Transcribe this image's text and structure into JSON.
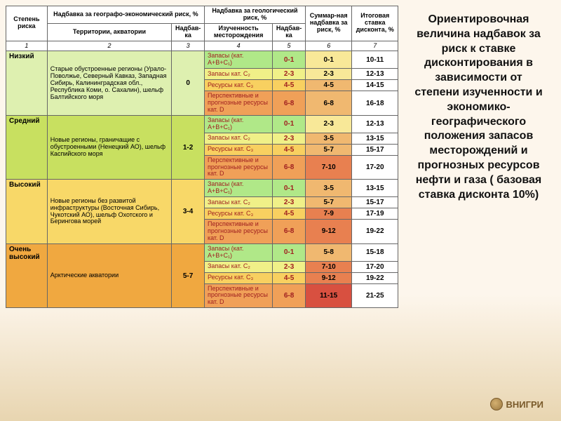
{
  "title_text": "Ориентировочная величина надбавок за риск к ставке дисконтирования в зависимости от степени изученности и экономико-географического положения запасов месторождений и прогнозных ресурсов нефти и газа ( базовая ставка дисконта 10%)",
  "footer": "ВНИГРИ",
  "headers": {
    "col1": "Степень риска",
    "geo_eco": "Надбавка за географо-экономический риск, %",
    "geol": "Надбавка за геологический риск, %",
    "sum": "Суммар-ная надбавка за риск, %",
    "total": "Итоговая ставка дисконта, %",
    "terr": "Территории, акватории",
    "nadb": "Надбав-ка",
    "study": "Изученность месторождения",
    "nadb2": "Надбав-ка"
  },
  "colnums": [
    "1",
    "2",
    "3",
    "4",
    "5",
    "6",
    "7"
  ],
  "colors": {
    "low_risk": "#def0b0",
    "mid_risk": "#c8e060",
    "high_risk": "#f8d868",
    "vhigh_risk": "#f0a840",
    "cat_abc": "#b0e888",
    "cat_c2": "#f0f088",
    "cat_c3": "#f8d060",
    "cat_d": "#f0a058",
    "sum_low": "#f8e898",
    "sum_mid": "#f0b870",
    "sum_high": "#e88050",
    "sum_vhigh": "#d85040"
  },
  "risk_levels": [
    {
      "name": "Низкий",
      "terr": "Старые обустроенные регионы (Урало-Поволжье, Северный Кавказ, Западная Сибирь, Калининградская обл., Республика Коми, о. Сахалин), шельф Балтийского моря",
      "nadb": "0",
      "bg": "low_risk",
      "rows": [
        {
          "study": "Запасы (кат. A+B+C₁)",
          "cat": "cat_abc",
          "n": "0-1",
          "s": "0-1",
          "sbg": "sum_low",
          "t": "10-11"
        },
        {
          "study": "Запасы кат. C₂",
          "cat": "cat_c2",
          "n": "2-3",
          "s": "2-3",
          "sbg": "sum_low",
          "t": "12-13"
        },
        {
          "study": "Ресурсы кат. C₃",
          "cat": "cat_c3",
          "n": "4-5",
          "s": "4-5",
          "sbg": "sum_mid",
          "t": "14-15"
        },
        {
          "study": "Перспективные и прогнозные ресурсы кат. D",
          "cat": "cat_d",
          "n": "6-8",
          "s": "6-8",
          "sbg": "sum_mid",
          "t": "16-18"
        }
      ]
    },
    {
      "name": "Средний",
      "terr": "Новые регионы, граничащие с обустроенными (Ненецкий АО), шельф Каспийского моря",
      "nadb": "1-2",
      "bg": "mid_risk",
      "rows": [
        {
          "study": "Запасы (кат. A+B+C₁)",
          "cat": "cat_abc",
          "n": "0-1",
          "s": "2-3",
          "sbg": "sum_low",
          "t": "12-13"
        },
        {
          "study": "Запасы кат. C₂",
          "cat": "cat_c2",
          "n": "2-3",
          "s": "3-5",
          "sbg": "sum_mid",
          "t": "13-15"
        },
        {
          "study": "Ресурсы кат. C₃",
          "cat": "cat_c3",
          "n": "4-5",
          "s": "5-7",
          "sbg": "sum_mid",
          "t": "15-17"
        },
        {
          "study": "Перспективные и прогнозные ресурсы кат. D",
          "cat": "cat_d",
          "n": "6-8",
          "s": "7-10",
          "sbg": "sum_high",
          "t": "17-20"
        }
      ]
    },
    {
      "name": "Высокий",
      "terr": "Новые регионы без развитой инфраструктуры (Восточная Сибирь, Чукотский АО), шельф Охотского и Берингова морей",
      "nadb": "3-4",
      "bg": "high_risk",
      "rows": [
        {
          "study": "Запасы (кат. A+B+C₁)",
          "cat": "cat_abc",
          "n": "0-1",
          "s": "3-5",
          "sbg": "sum_mid",
          "t": "13-15"
        },
        {
          "study": "Запасы кат. C₂",
          "cat": "cat_c2",
          "n": "2-3",
          "s": "5-7",
          "sbg": "sum_mid",
          "t": "15-17"
        },
        {
          "study": "Ресурсы кат. C₃",
          "cat": "cat_c3",
          "n": "4-5",
          "s": "7-9",
          "sbg": "sum_high",
          "t": "17-19"
        },
        {
          "study": "Перспективные и прогнозные ресурсы кат. D",
          "cat": "cat_d",
          "n": "6-8",
          "s": "9-12",
          "sbg": "sum_high",
          "t": "19-22"
        }
      ]
    },
    {
      "name": "Очень высокий",
      "terr": "Арктические акватории",
      "nadb": "5-7",
      "bg": "vhigh_risk",
      "rows": [
        {
          "study": "Запасы (кат. A+B+C₁)",
          "cat": "cat_abc",
          "n": "0-1",
          "s": "5-8",
          "sbg": "sum_mid",
          "t": "15-18"
        },
        {
          "study": "Запасы кат. C₂",
          "cat": "cat_c2",
          "n": "2-3",
          "s": "7-10",
          "sbg": "sum_high",
          "t": "17-20"
        },
        {
          "study": "Ресурсы кат. C₃",
          "cat": "cat_c3",
          "n": "4-5",
          "s": "9-12",
          "sbg": "sum_high",
          "t": "19-22"
        },
        {
          "study": "Перспективные и прогнозные ресурсы кат. D",
          "cat": "cat_d",
          "n": "6-8",
          "s": "11-15",
          "sbg": "sum_vhigh",
          "t": "21-25"
        }
      ]
    }
  ]
}
